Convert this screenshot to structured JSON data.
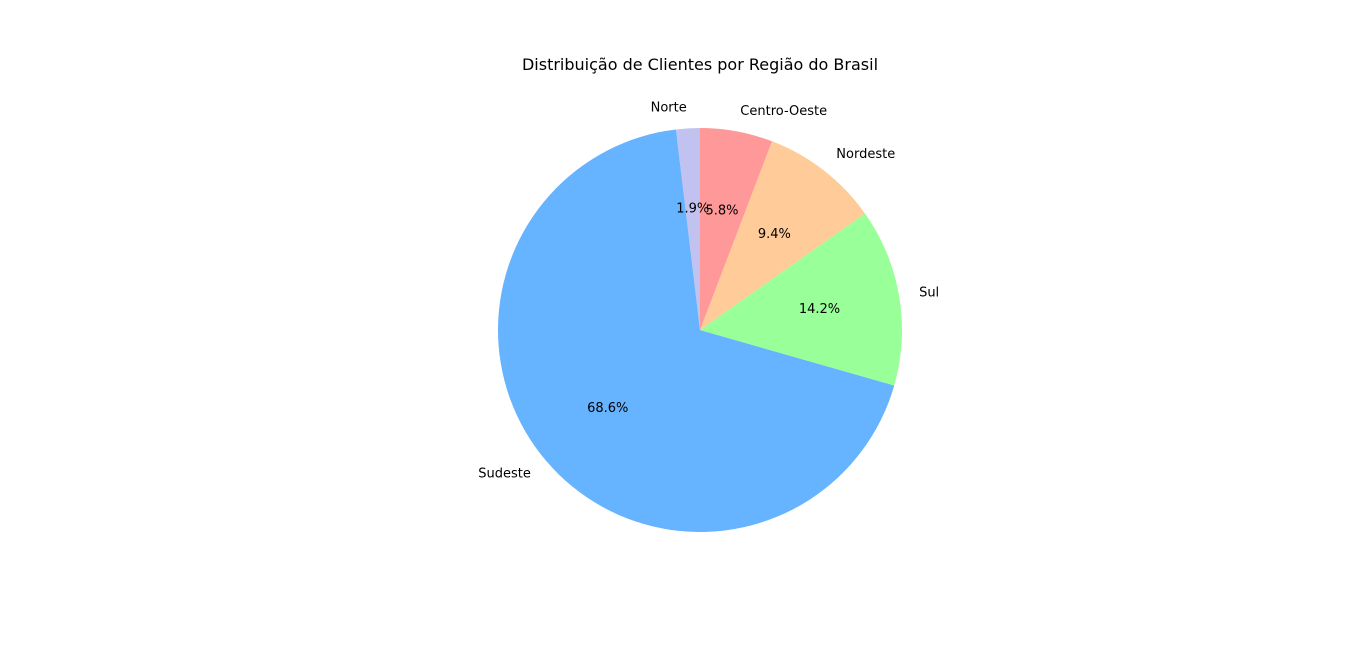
{
  "chart_data": {
    "type": "pie",
    "title": "Distribuição de Clientes por Região do Brasil",
    "start_angle_deg": 90,
    "direction": "counterclockwise",
    "slices": [
      {
        "label": "Norte",
        "value": 1.9,
        "pct_label": "1.9%",
        "color": "#c2c2f0"
      },
      {
        "label": "Sudeste",
        "value": 68.6,
        "pct_label": "68.6%",
        "color": "#66b3ff"
      },
      {
        "label": "Sul",
        "value": 14.2,
        "pct_label": "14.2%",
        "color": "#99ff99"
      },
      {
        "label": "Nordeste",
        "value": 9.4,
        "pct_label": "9.4%",
        "color": "#ffcc99"
      },
      {
        "label": "Centro-Oeste",
        "value": 5.8,
        "pct_label": "5.8%",
        "color": "#ff9999"
      }
    ]
  }
}
